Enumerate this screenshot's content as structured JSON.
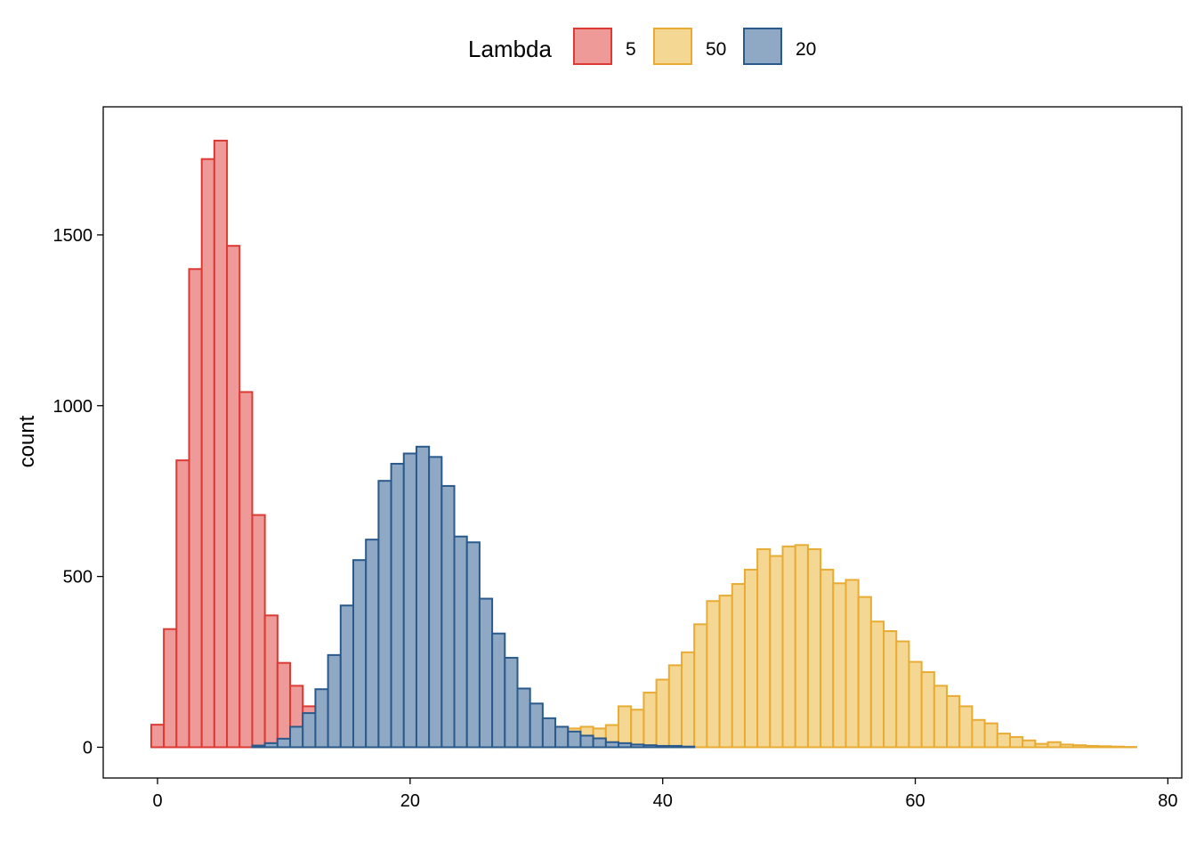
{
  "chart_data": {
    "type": "histogram",
    "title": "",
    "xlabel": "",
    "ylabel": "count",
    "xlim": [
      -4.3,
      81.1
    ],
    "ylim": [
      -90,
      1875
    ],
    "x_ticks": [
      0,
      20,
      40,
      60,
      80
    ],
    "y_ticks": [
      0,
      500,
      1000,
      1500
    ],
    "bin_width": 1,
    "grid": false,
    "legend": {
      "title": "Lambda",
      "position": "top"
    },
    "series": [
      {
        "name": "5",
        "fill": "#EE9A98",
        "stroke": "#DC3A33",
        "x": [
          0,
          1,
          2,
          3,
          4,
          5,
          6,
          7,
          8,
          9,
          10,
          11,
          12,
          13,
          14,
          15,
          16,
          17,
          18
        ],
        "values": [
          66,
          346,
          840,
          1400,
          1722,
          1776,
          1468,
          1040,
          680,
          386,
          247,
          180,
          120,
          60,
          30,
          15,
          6,
          3,
          1
        ]
      },
      {
        "name": "50",
        "fill": "#F5D794",
        "stroke": "#E8AB34",
        "x": [
          28,
          29,
          30,
          31,
          32,
          33,
          34,
          35,
          36,
          37,
          38,
          39,
          40,
          41,
          42,
          43,
          44,
          45,
          46,
          47,
          48,
          49,
          50,
          51,
          52,
          53,
          54,
          55,
          56,
          57,
          58,
          59,
          60,
          61,
          62,
          63,
          64,
          65,
          66,
          67,
          68,
          69,
          70,
          71,
          72,
          73,
          74,
          75,
          76,
          77
        ],
        "values": [
          3,
          8,
          18,
          35,
          45,
          55,
          60,
          55,
          65,
          120,
          110,
          160,
          198,
          240,
          278,
          360,
          428,
          444,
          478,
          520,
          580,
          560,
          588,
          592,
          580,
          520,
          480,
          490,
          440,
          368,
          340,
          310,
          250,
          220,
          180,
          150,
          120,
          80,
          70,
          40,
          30,
          20,
          10,
          15,
          8,
          6,
          4,
          3,
          2,
          1
        ]
      },
      {
        "name": "20",
        "fill": "#8FA9C4",
        "stroke": "#2A5A8C",
        "x": [
          8,
          9,
          10,
          11,
          12,
          13,
          14,
          15,
          16,
          17,
          18,
          19,
          20,
          21,
          22,
          23,
          24,
          25,
          26,
          27,
          28,
          29,
          30,
          31,
          32,
          33,
          34,
          35,
          36,
          37,
          38,
          39,
          40,
          41,
          42
        ],
        "values": [
          5,
          12,
          25,
          60,
          100,
          170,
          270,
          415,
          548,
          608,
          780,
          830,
          860,
          880,
          850,
          765,
          617,
          600,
          435,
          333,
          262,
          172,
          128,
          85,
          60,
          46,
          34,
          26,
          15,
          12,
          8,
          6,
          4,
          4,
          2
        ]
      }
    ]
  }
}
